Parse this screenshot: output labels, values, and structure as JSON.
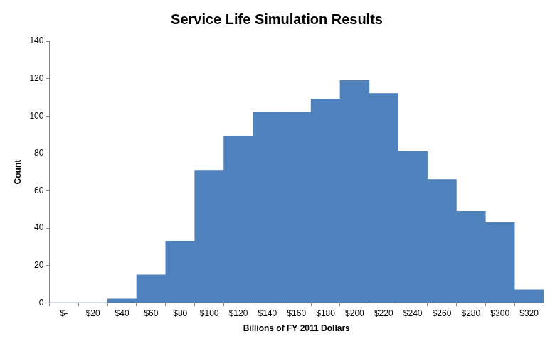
{
  "chart_data": {
    "type": "bar",
    "title": "Service Life Simulation Results",
    "x_label": "Billions of FY 2011 Dollars",
    "y_label": "Count",
    "categories": [
      "$-",
      "$20",
      "$40",
      "$60",
      "$80",
      "$100",
      "$120",
      "$140",
      "$160",
      "$180",
      "$200",
      "$220",
      "$240",
      "$260",
      "$280",
      "$300",
      "$320"
    ],
    "values": [
      0,
      0,
      2,
      15,
      33,
      71,
      89,
      102,
      102,
      109,
      119,
      112,
      81,
      66,
      49,
      43,
      7
    ],
    "color": "#4f81bd",
    "ylim": [
      0,
      140
    ],
    "yticks": [
      0,
      20,
      40,
      60,
      80,
      100,
      120,
      140
    ],
    "grid": false
  }
}
